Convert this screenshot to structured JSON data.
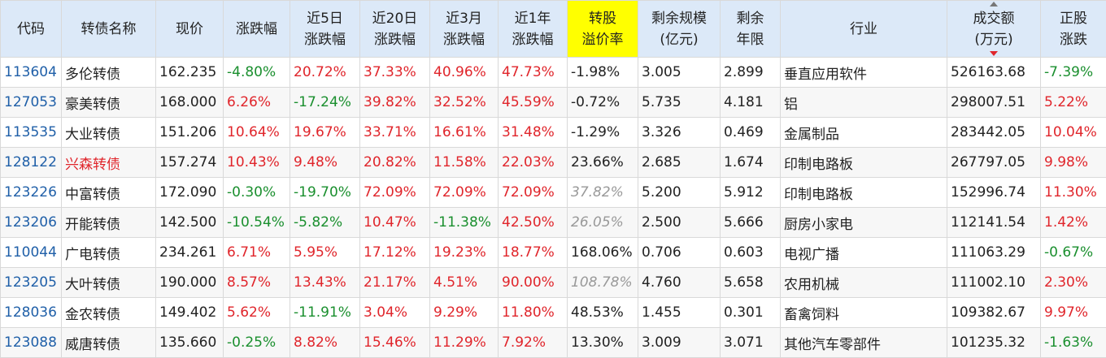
{
  "colors": {
    "header_bg": "#dce9f8",
    "highlight": "#ffff00",
    "up": "#e0252b",
    "down": "#1a8f2e",
    "code": "#1f5fa8"
  },
  "headers": [
    {
      "key": "code",
      "label": "代码"
    },
    {
      "key": "name",
      "label": "转债名称"
    },
    {
      "key": "price",
      "label": "现价"
    },
    {
      "key": "chg",
      "label": "涨跌幅"
    },
    {
      "key": "chg5",
      "label": "近5日 涨跌幅"
    },
    {
      "key": "chg20",
      "label": "近20日 涨跌幅"
    },
    {
      "key": "chg3m",
      "label": "近3月 涨跌幅"
    },
    {
      "key": "chg1y",
      "label": "近1年 涨跌幅"
    },
    {
      "key": "premium",
      "label": "转股 溢价率"
    },
    {
      "key": "scale",
      "label": "剩余规模 (亿元)"
    },
    {
      "key": "years",
      "label": "剩余 年限"
    },
    {
      "key": "industry",
      "label": "行业"
    },
    {
      "key": "volume",
      "label": "成交额 (万元)"
    },
    {
      "key": "stock_chg",
      "label": "正股 涨跌"
    }
  ],
  "rows": [
    {
      "code": "113604",
      "name": "多伦转债",
      "price": "162.235",
      "chg": "-4.80%",
      "chg5": "20.72%",
      "chg20": "37.33%",
      "chg3m": "40.96%",
      "chg1y": "47.73%",
      "premium": "-1.98%",
      "scale": "3.005",
      "years": "2.899",
      "industry": "垂直应用软件",
      "volume": "526163.68",
      "stock_chg": "-7.39%"
    },
    {
      "code": "127053",
      "name": "豪美转债",
      "price": "168.000",
      "chg": "6.26%",
      "chg5": "-17.24%",
      "chg20": "39.82%",
      "chg3m": "32.52%",
      "chg1y": "45.59%",
      "premium": "-0.72%",
      "scale": "5.735",
      "years": "4.181",
      "industry": "铝",
      "volume": "298007.51",
      "stock_chg": "5.22%"
    },
    {
      "code": "113535",
      "name": "大业转债",
      "price": "151.206",
      "chg": "10.64%",
      "chg5": "19.67%",
      "chg20": "33.71%",
      "chg3m": "16.61%",
      "chg1y": "31.48%",
      "premium": "-1.29%",
      "scale": "3.326",
      "years": "0.469",
      "industry": "金属制品",
      "volume": "283442.05",
      "stock_chg": "10.04%"
    },
    {
      "code": "128122",
      "name": "兴森转债",
      "price": "157.274",
      "chg": "10.43%",
      "chg5": "9.48%",
      "chg20": "20.82%",
      "chg3m": "11.58%",
      "chg1y": "22.03%",
      "premium": "23.66%",
      "scale": "2.685",
      "years": "1.674",
      "industry": "印制电路板",
      "volume": "267797.05",
      "stock_chg": "9.98%"
    },
    {
      "code": "123226",
      "name": "中富转债",
      "price": "172.090",
      "chg": "-0.30%",
      "chg5": "-19.70%",
      "chg20": "72.09%",
      "chg3m": "72.09%",
      "chg1y": "72.09%",
      "premium": "37.82%",
      "scale": "5.200",
      "years": "5.912",
      "industry": "印制电路板",
      "volume": "152996.74",
      "stock_chg": "11.30%"
    },
    {
      "code": "123206",
      "name": "开能转债",
      "price": "142.500",
      "chg": "-10.54%",
      "chg5": "-5.82%",
      "chg20": "10.47%",
      "chg3m": "-11.38%",
      "chg1y": "42.50%",
      "premium": "26.05%",
      "scale": "2.500",
      "years": "5.666",
      "industry": "厨房小家电",
      "volume": "112141.54",
      "stock_chg": "1.42%"
    },
    {
      "code": "110044",
      "name": "广电转债",
      "price": "234.261",
      "chg": "6.71%",
      "chg5": "5.95%",
      "chg20": "17.12%",
      "chg3m": "19.23%",
      "chg1y": "18.77%",
      "premium": "168.06%",
      "scale": "0.706",
      "years": "0.603",
      "industry": "电视广播",
      "volume": "111063.29",
      "stock_chg": "-0.67%"
    },
    {
      "code": "123205",
      "name": "大叶转债",
      "price": "190.000",
      "chg": "8.57%",
      "chg5": "13.43%",
      "chg20": "21.17%",
      "chg3m": "4.51%",
      "chg1y": "90.00%",
      "premium": "108.78%",
      "scale": "4.760",
      "years": "5.658",
      "industry": "农用机械",
      "volume": "111002.10",
      "stock_chg": "2.30%"
    },
    {
      "code": "128036",
      "name": "金农转债",
      "price": "149.402",
      "chg": "5.62%",
      "chg5": "-11.91%",
      "chg20": "3.04%",
      "chg3m": "9.29%",
      "chg1y": "11.80%",
      "premium": "48.53%",
      "scale": "1.455",
      "years": "0.301",
      "industry": "畜禽饲料",
      "volume": "109382.67",
      "stock_chg": "9.97%"
    },
    {
      "code": "123088",
      "name": "威唐转债",
      "price": "135.660",
      "chg": "-0.25%",
      "chg5": "8.82%",
      "chg20": "15.46%",
      "chg3m": "11.29%",
      "chg1y": "7.92%",
      "premium": "13.30%",
      "scale": "3.009",
      "years": "3.071",
      "industry": "其他汽车零部件",
      "volume": "101235.32",
      "stock_chg": "-1.63%"
    }
  ],
  "italic_premium_rows": [
    4,
    5,
    7
  ],
  "red_name_rows": [
    3
  ]
}
